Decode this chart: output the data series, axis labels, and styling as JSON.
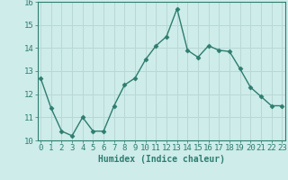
{
  "x": [
    0,
    1,
    2,
    3,
    4,
    5,
    6,
    7,
    8,
    9,
    10,
    11,
    12,
    13,
    14,
    15,
    16,
    17,
    18,
    19,
    20,
    21,
    22,
    23
  ],
  "y": [
    12.7,
    11.4,
    10.4,
    10.2,
    11.0,
    10.4,
    10.4,
    11.5,
    12.4,
    12.7,
    13.5,
    14.1,
    14.5,
    15.7,
    13.9,
    13.6,
    14.1,
    13.9,
    13.85,
    13.1,
    12.3,
    11.9,
    11.5,
    11.5
  ],
  "line_color": "#2e7d6e",
  "marker": "D",
  "markersize": 2.5,
  "linewidth": 1.0,
  "xlabel": "Humidex (Indice chaleur)",
  "xlabel_fontsize": 7,
  "bg_color": "#cdecea",
  "grid_color": "#b8d8d5",
  "tick_label_fontsize": 6.5,
  "ylim": [
    10,
    16
  ],
  "yticks": [
    10,
    11,
    12,
    13,
    14,
    15,
    16
  ],
  "xticks": [
    0,
    1,
    2,
    3,
    4,
    5,
    6,
    7,
    8,
    9,
    10,
    11,
    12,
    13,
    14,
    15,
    16,
    17,
    18,
    19,
    20,
    21,
    22,
    23
  ],
  "spine_color": "#2e7d6e",
  "text_color": "#2e7d6e"
}
